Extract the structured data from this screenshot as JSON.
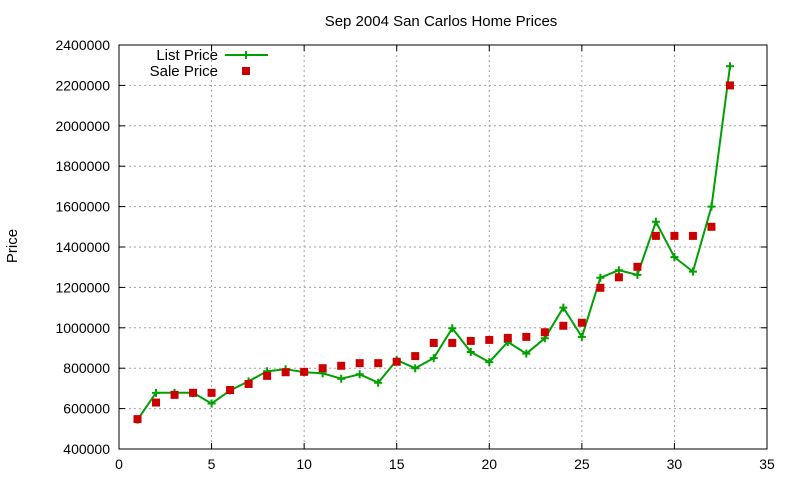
{
  "chart_data": {
    "type": "line",
    "title": "Sep 2004 San Carlos Home Prices",
    "xlabel": "",
    "ylabel": "Price",
    "xlim": [
      0,
      35
    ],
    "ylim": [
      400000,
      2400000
    ],
    "xticks": [
      0,
      5,
      10,
      15,
      20,
      25,
      30,
      35
    ],
    "yticks": [
      400000,
      600000,
      800000,
      1000000,
      1200000,
      1400000,
      1600000,
      1800000,
      2000000,
      2200000,
      2400000
    ],
    "grid": true,
    "legend_position": "top-left",
    "x": [
      1,
      2,
      3,
      4,
      5,
      6,
      7,
      8,
      9,
      10,
      11,
      12,
      13,
      14,
      15,
      16,
      17,
      18,
      19,
      20,
      21,
      22,
      23,
      24,
      25,
      26,
      27,
      28,
      29,
      30,
      31,
      32,
      33
    ],
    "series": [
      {
        "name": "List Price",
        "style": "line-with-plus-markers",
        "color": "#00a000",
        "values": [
          545000,
          678000,
          678000,
          678000,
          625000,
          690000,
          735000,
          785000,
          795000,
          780000,
          775000,
          748000,
          770000,
          728000,
          840000,
          800000,
          850000,
          998000,
          880000,
          830000,
          930000,
          872000,
          948000,
          1100000,
          955000,
          1248000,
          1285000,
          1262000,
          1525000,
          1350000,
          1278000,
          1600000,
          2295000
        ]
      },
      {
        "name": "Sale Price",
        "style": "square-markers",
        "color": "#cc0000",
        "values": [
          548000,
          630000,
          668000,
          678000,
          678000,
          692000,
          722000,
          762000,
          780000,
          782000,
          800000,
          812000,
          825000,
          825000,
          832000,
          860000,
          925000,
          925000,
          935000,
          940000,
          950000,
          955000,
          978000,
          1010000,
          1025000,
          1198000,
          1250000,
          1302000,
          1455000,
          1455000,
          1455000,
          1500000,
          2200000
        ]
      }
    ]
  }
}
